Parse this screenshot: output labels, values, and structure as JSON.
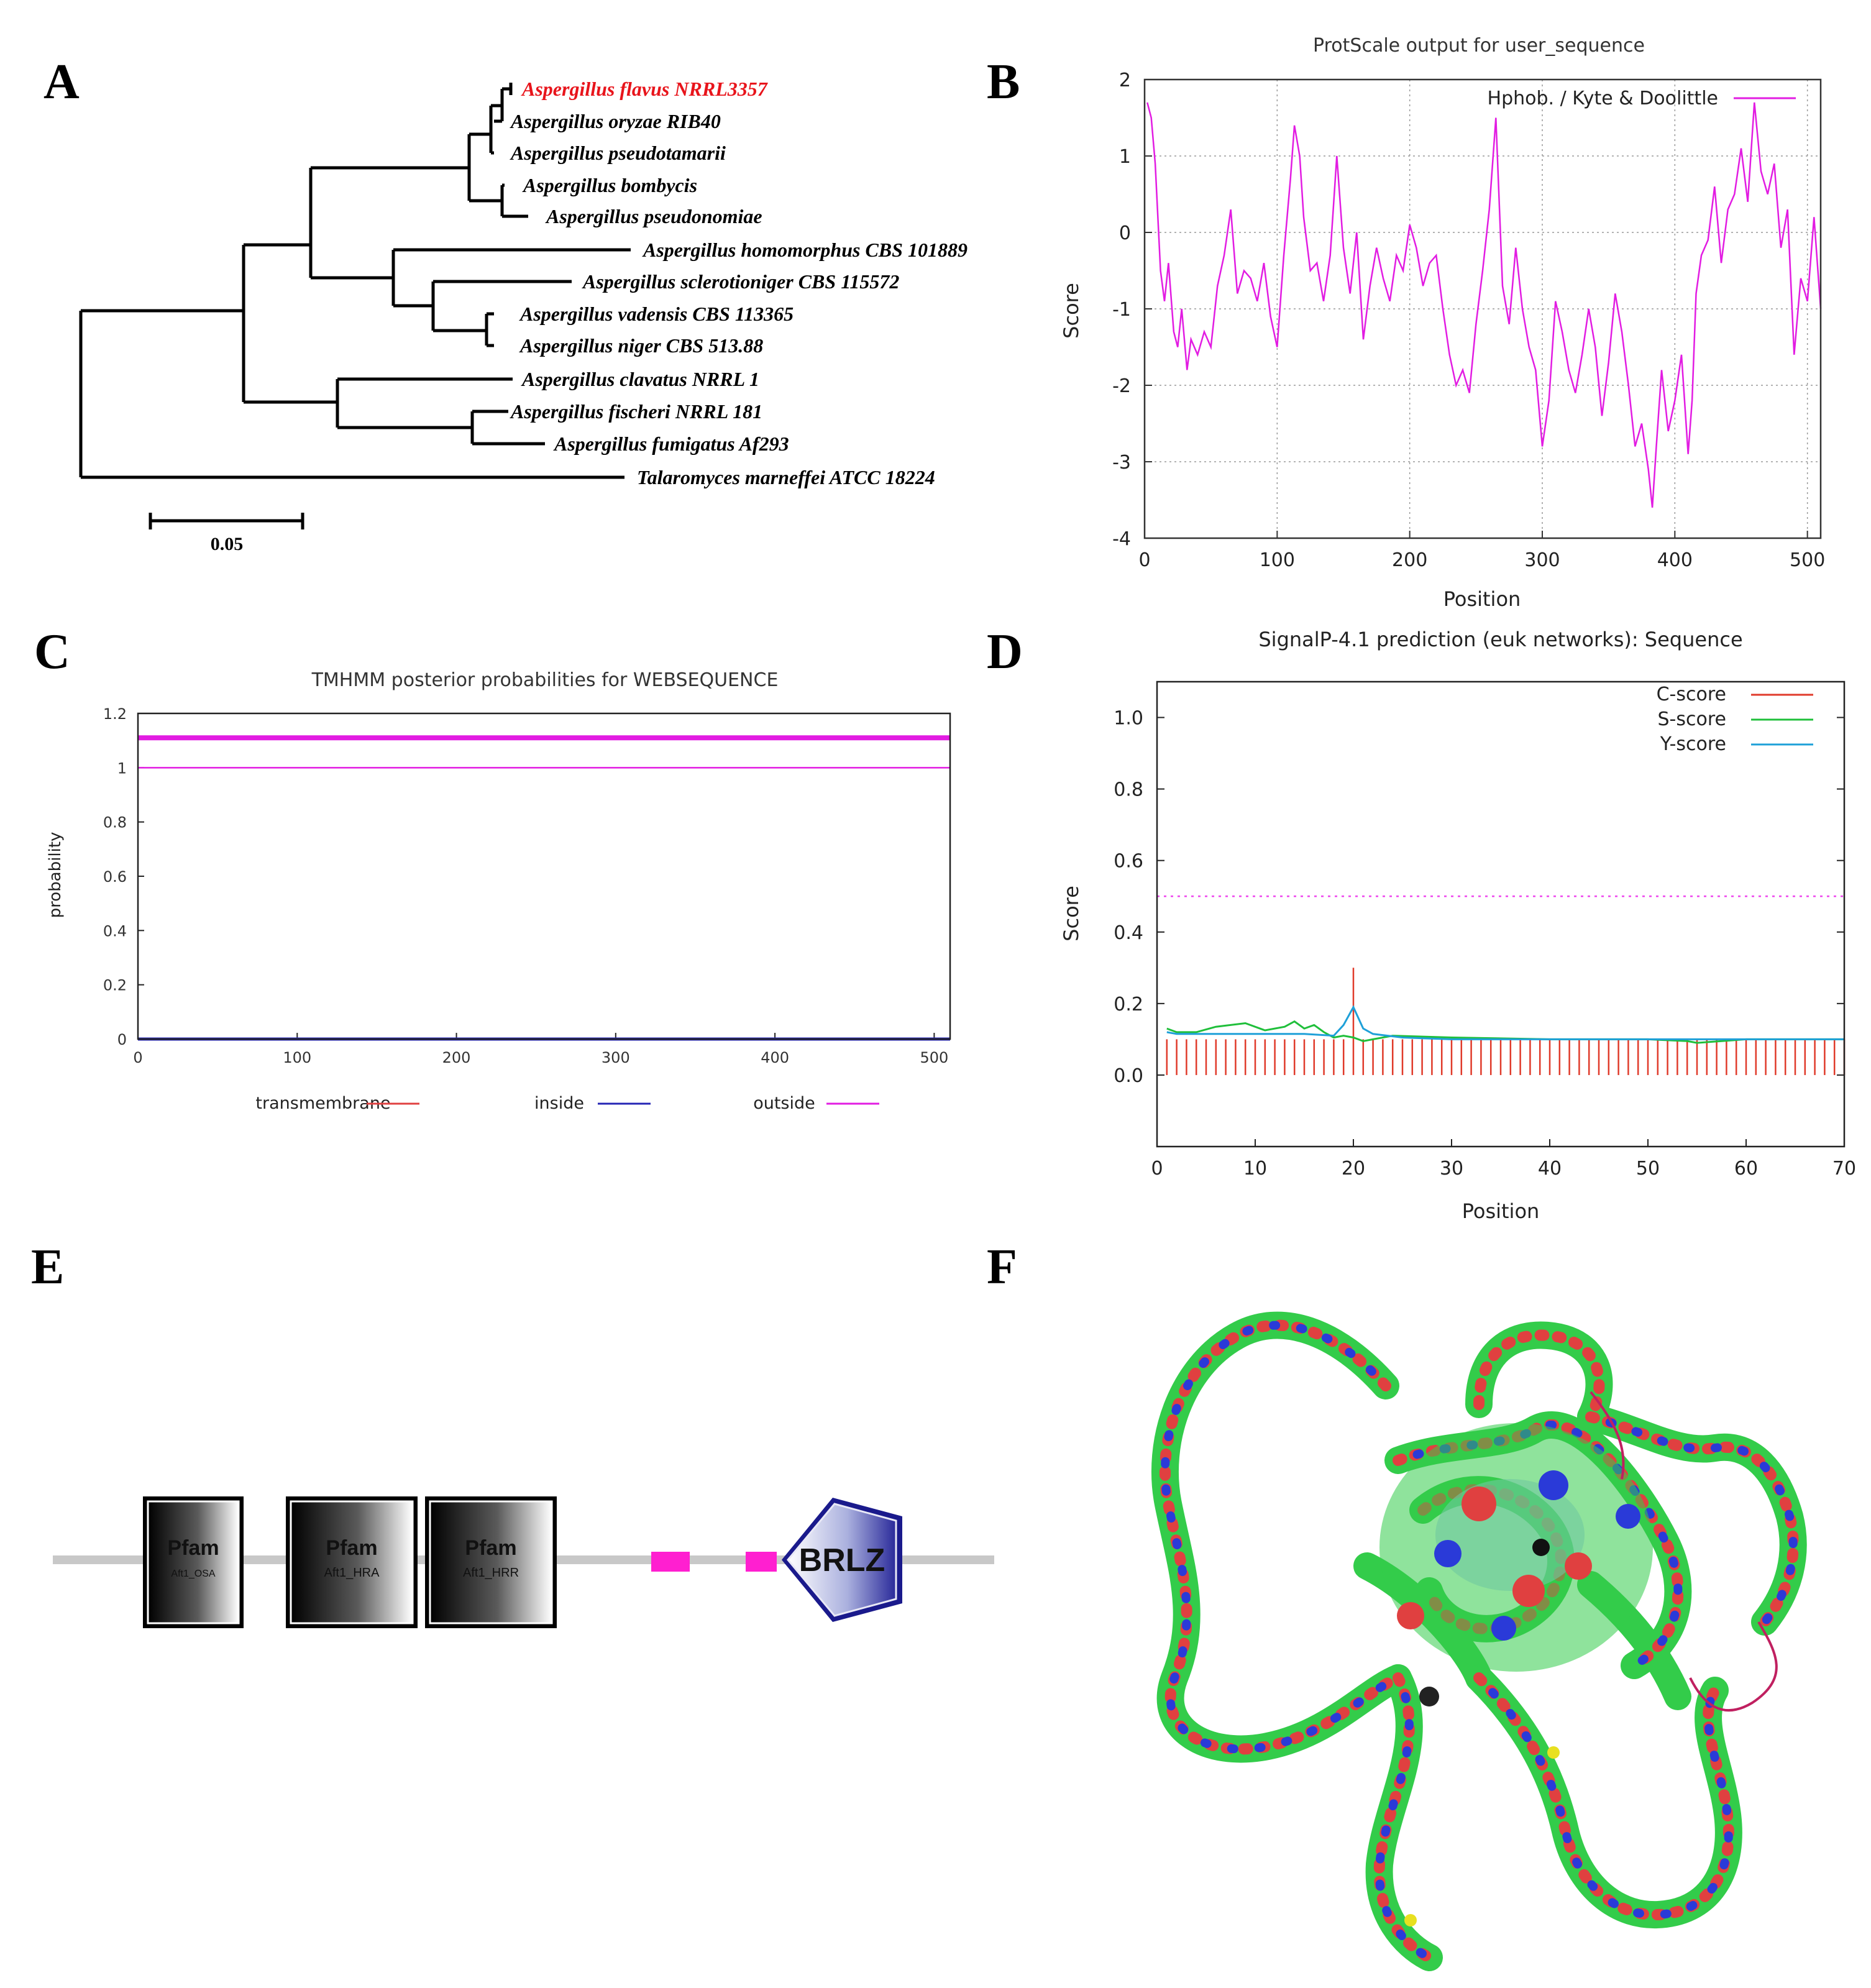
{
  "panels": {
    "a": "A",
    "b": "B",
    "c": "C",
    "d": "D",
    "e": "E",
    "f": "F"
  },
  "colors": {
    "highlight_taxon": "#e8141b",
    "hydropathy": "#e21ce2",
    "tm_outside": "#e21ce2",
    "tm_inside": "#2424b4",
    "tm_transmembrane": "#e04040",
    "c_score": "#e03a2a",
    "s_score": "#1fbf3a",
    "y_score": "#1ea0d8",
    "pfam_box": "#000000",
    "linker": "#c8c8c8",
    "motif": "#ff1fd0",
    "brlz_fill": "#3a3ab0"
  },
  "chart_data": [
    {
      "panel": "A",
      "type": "phylogenetic-tree",
      "taxa": [
        {
          "name": "Aspergillus flavus NRRL3357",
          "highlight": true
        },
        {
          "name": "Aspergillus oryzae RIB40"
        },
        {
          "name": "Aspergillus pseudotamarii"
        },
        {
          "name": "Aspergillus bombycis"
        },
        {
          "name": "Aspergillus pseudonomiae"
        },
        {
          "name": "Aspergillus homomorphus CBS 101889"
        },
        {
          "name": "Aspergillus sclerotioniger CBS 115572"
        },
        {
          "name": "Aspergillus vadensis CBS 113365"
        },
        {
          "name": "Aspergillus niger CBS 513.88"
        },
        {
          "name": "Aspergillus clavatus NRRL 1"
        },
        {
          "name": "Aspergillus fischeri NRRL 181"
        },
        {
          "name": "Aspergillus fumigatus Af293"
        },
        {
          "name": "Talaromyces marneffei ATCC 18224"
        }
      ],
      "scale_bar": "0.05"
    },
    {
      "panel": "B",
      "type": "line",
      "title": "ProtScale output for user_sequence",
      "xlabel": "Position",
      "ylabel": "Score",
      "xlim": [
        0,
        510
      ],
      "ylim": [
        -4,
        2
      ],
      "xticks": [
        "0",
        "100",
        "200",
        "300",
        "400",
        "500"
      ],
      "yticks": [
        "2",
        "1",
        "0",
        "-1",
        "-2",
        "-3",
        "-4"
      ],
      "series": [
        {
          "name": "Hphob. / Kyte & Doolittle",
          "x": [
            2,
            5,
            8,
            12,
            15,
            18,
            22,
            25,
            28,
            32,
            35,
            40,
            45,
            50,
            55,
            60,
            65,
            70,
            75,
            80,
            85,
            90,
            95,
            100,
            105,
            110,
            113,
            117,
            120,
            125,
            130,
            135,
            140,
            145,
            150,
            155,
            160,
            165,
            170,
            175,
            180,
            185,
            190,
            195,
            200,
            205,
            210,
            215,
            220,
            225,
            230,
            235,
            240,
            245,
            250,
            255,
            260,
            265,
            270,
            275,
            280,
            285,
            290,
            295,
            300,
            305,
            310,
            315,
            320,
            325,
            330,
            335,
            340,
            345,
            350,
            355,
            360,
            365,
            370,
            375,
            380,
            383,
            386,
            390,
            395,
            400,
            405,
            410,
            413,
            416,
            420,
            425,
            430,
            435,
            440,
            445,
            450,
            455,
            460,
            465,
            470,
            475,
            480,
            485,
            490,
            495,
            500,
            505,
            510
          ],
          "y": [
            1.7,
            1.5,
            0.9,
            -0.5,
            -0.9,
            -0.4,
            -1.3,
            -1.5,
            -1.0,
            -1.8,
            -1.4,
            -1.6,
            -1.3,
            -1.5,
            -0.7,
            -0.3,
            0.3,
            -0.8,
            -0.5,
            -0.6,
            -0.9,
            -0.4,
            -1.1,
            -1.5,
            -0.3,
            0.7,
            1.4,
            1.0,
            0.2,
            -0.5,
            -0.4,
            -0.9,
            -0.3,
            1.0,
            -0.2,
            -0.8,
            0.0,
            -1.4,
            -0.7,
            -0.2,
            -0.6,
            -0.9,
            -0.3,
            -0.5,
            0.1,
            -0.2,
            -0.7,
            -0.4,
            -0.3,
            -1.0,
            -1.6,
            -2.0,
            -1.8,
            -2.1,
            -1.2,
            -0.5,
            0.3,
            1.5,
            -0.7,
            -1.2,
            -0.2,
            -1.0,
            -1.5,
            -1.8,
            -2.8,
            -2.2,
            -0.9,
            -1.3,
            -1.8,
            -2.1,
            -1.6,
            -1.0,
            -1.5,
            -2.4,
            -1.7,
            -0.8,
            -1.3,
            -2.0,
            -2.8,
            -2.5,
            -3.1,
            -3.6,
            -2.8,
            -1.8,
            -2.6,
            -2.2,
            -1.6,
            -2.9,
            -2.2,
            -0.8,
            -0.3,
            -0.1,
            0.6,
            -0.4,
            0.3,
            0.5,
            1.1,
            0.4,
            1.7,
            0.8,
            0.5,
            0.9,
            -0.2,
            0.3,
            -1.6,
            -0.6,
            -0.9,
            0.2,
            -1.0
          ]
        }
      ]
    },
    {
      "panel": "C",
      "type": "line",
      "title": "TMHMM posterior probabilities for WEBSEQUENCE",
      "ylabel": "probability",
      "xlim": [
        0,
        510
      ],
      "ylim": [
        0,
        1.2
      ],
      "xticks": [
        "0",
        "100",
        "200",
        "300",
        "400",
        "500"
      ],
      "yticks": [
        "1.2",
        "1",
        "0.8",
        "0.6",
        "0.4",
        "0.2",
        "0"
      ],
      "legend": [
        "transmembrane",
        "inside",
        "outside"
      ],
      "series": [
        {
          "name": "outside",
          "x": [
            0,
            510
          ],
          "y": [
            1,
            1
          ]
        },
        {
          "name": "inside",
          "x": [
            0,
            510
          ],
          "y": [
            0,
            0
          ]
        },
        {
          "name": "transmembrane",
          "x": [
            0,
            510
          ],
          "y": [
            0,
            0
          ]
        }
      ],
      "topology_bar_level": 1.11
    },
    {
      "panel": "D",
      "type": "line",
      "title": "SignalP-4.1 prediction (euk networks): Sequence",
      "xlabel": "Position",
      "ylabel": "Score",
      "xlim": [
        0,
        70
      ],
      "ylim": [
        -0.2,
        1.1
      ],
      "threshold": 0.5,
      "xticks": [
        "0",
        "10",
        "20",
        "30",
        "40",
        "50",
        "60",
        "70"
      ],
      "yticks": [
        "1.0",
        "0.8",
        "0.6",
        "0.4",
        "0.2",
        "0.0"
      ],
      "series": [
        {
          "name": "C-score",
          "style": "impulses",
          "x": [
            1,
            2,
            3,
            4,
            5,
            6,
            7,
            8,
            9,
            10,
            11,
            12,
            13,
            14,
            15,
            16,
            17,
            18,
            19,
            20,
            21,
            22,
            23,
            24,
            25,
            26,
            27,
            28,
            29,
            30,
            31,
            32,
            33,
            34,
            35,
            36,
            37,
            38,
            39,
            40,
            41,
            42,
            43,
            44,
            45,
            46,
            47,
            48,
            49,
            50,
            51,
            52,
            53,
            54,
            55,
            56,
            57,
            58,
            59,
            60,
            61,
            62,
            63,
            64,
            65,
            66,
            67,
            68,
            69,
            70
          ],
          "y": [
            0.1,
            0.1,
            0.1,
            0.1,
            0.1,
            0.1,
            0.1,
            0.1,
            0.1,
            0.1,
            0.1,
            0.1,
            0.1,
            0.1,
            0.1,
            0.1,
            0.1,
            0.1,
            0.1,
            0.3,
            0.1,
            0.1,
            0.1,
            0.1,
            0.1,
            0.1,
            0.1,
            0.1,
            0.1,
            0.1,
            0.1,
            0.1,
            0.1,
            0.1,
            0.1,
            0.1,
            0.1,
            0.1,
            0.1,
            0.1,
            0.1,
            0.1,
            0.1,
            0.1,
            0.1,
            0.1,
            0.1,
            0.1,
            0.1,
            0.1,
            0.1,
            0.1,
            0.1,
            0.1,
            0.1,
            0.1,
            0.1,
            0.1,
            0.1,
            0.1,
            0.1,
            0.1,
            0.1,
            0.1,
            0.1,
            0.1,
            0.1,
            0.1,
            0.1,
            0.1
          ]
        },
        {
          "name": "S-score",
          "x": [
            1,
            2,
            4,
            6,
            9,
            11,
            13,
            14,
            15,
            16,
            17,
            18,
            19,
            20,
            21,
            22,
            24,
            30,
            40,
            50,
            54,
            55,
            60,
            70
          ],
          "y": [
            0.13,
            0.12,
            0.12,
            0.135,
            0.145,
            0.125,
            0.135,
            0.15,
            0.13,
            0.14,
            0.12,
            0.105,
            0.11,
            0.105,
            0.095,
            0.1,
            0.11,
            0.105,
            0.1,
            0.1,
            0.095,
            0.09,
            0.1,
            0.1
          ]
        },
        {
          "name": "Y-score",
          "x": [
            1,
            2,
            5,
            10,
            15,
            18,
            19,
            20,
            21,
            22,
            25,
            30,
            40,
            50,
            55,
            60,
            70
          ],
          "y": [
            0.12,
            0.115,
            0.115,
            0.115,
            0.115,
            0.11,
            0.14,
            0.19,
            0.13,
            0.115,
            0.105,
            0.1,
            0.1,
            0.1,
            0.1,
            0.1,
            0.1
          ]
        }
      ]
    },
    {
      "panel": "E",
      "type": "domain-architecture",
      "domains": [
        {
          "type": "Pfam",
          "name": "Aft1_OSA"
        },
        {
          "type": "Pfam",
          "name": "Aft1_HRA"
        },
        {
          "type": "Pfam",
          "name": "Aft1_HRR"
        },
        {
          "type": "motif"
        },
        {
          "type": "motif"
        },
        {
          "type": "BRLZ",
          "name": "BRLZ"
        }
      ]
    },
    {
      "panel": "F",
      "type": "protein-3d-structure"
    }
  ]
}
